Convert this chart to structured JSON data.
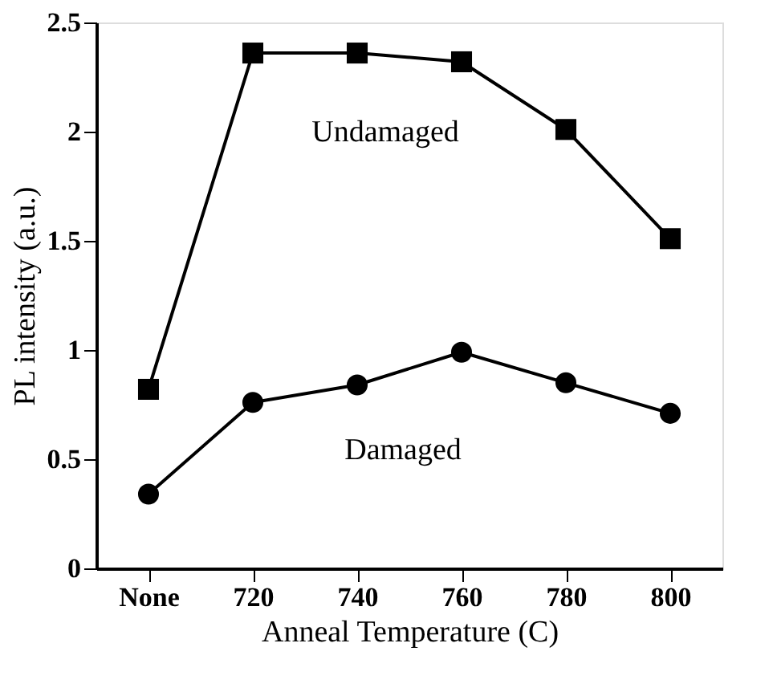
{
  "chart_data": {
    "type": "line",
    "xlabel": "Anneal Temperature (C)",
    "ylabel": "PL intensity (a.u.)",
    "categories": [
      "None",
      "720",
      "740",
      "760",
      "780",
      "800"
    ],
    "series": [
      {
        "name": "Undamaged",
        "color": "#000000",
        "marker": "square",
        "values": [
          0.82,
          2.36,
          2.36,
          2.32,
          2.01,
          1.51
        ]
      },
      {
        "name": "Damaged",
        "color": "#000000",
        "marker": "circle",
        "values": [
          0.34,
          0.76,
          0.84,
          0.99,
          0.85,
          0.71
        ]
      }
    ],
    "ylim": [
      0,
      2.5
    ],
    "yticks": [
      0,
      0.5,
      1,
      1.5,
      2,
      2.5
    ],
    "grid": false,
    "line_style": "solid"
  }
}
